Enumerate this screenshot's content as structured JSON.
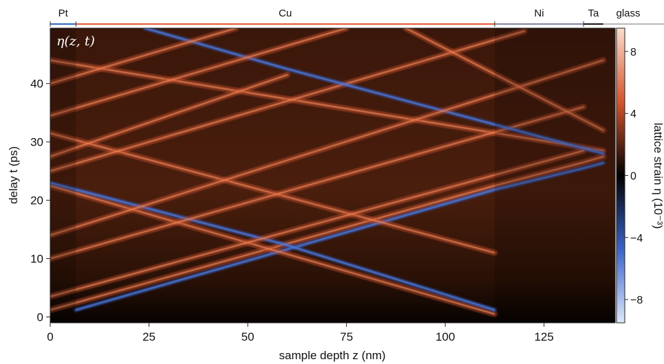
{
  "chart_data": {
    "type": "heatmap",
    "title": "",
    "panel_label": "η(z, t)",
    "xlabel": "sample depth z (nm)",
    "ylabel": "delay t (ps)",
    "xlim": [
      0,
      143
    ],
    "ylim": [
      -1,
      49.5
    ],
    "x_ticks": [
      0,
      25,
      50,
      75,
      100,
      125
    ],
    "x_tick_labels": [
      "0",
      "25",
      "50",
      "75",
      "100",
      "125"
    ],
    "y_ticks": [
      0,
      10,
      20,
      30,
      40
    ],
    "y_tick_labels": [
      "0",
      "10",
      "20",
      "30",
      "40"
    ],
    "layers": [
      {
        "name": "Pt",
        "z_start": 0,
        "z_end": 6.5,
        "color": "#3b6fc4"
      },
      {
        "name": "Cu",
        "z_start": 6.5,
        "z_end": 112.5,
        "color": "#e8603a"
      },
      {
        "name": "Ni",
        "z_start": 112.5,
        "z_end": 135,
        "color": "#8a8aa6"
      },
      {
        "name": "Ta",
        "z_start": 135,
        "z_end": 140,
        "color": "#222222"
      },
      {
        "name": "glass",
        "z_start": 140,
        "z_end": 143,
        "color": "#bbbbbb"
      }
    ],
    "colorbar": {
      "label": "lattice strain η (10⁻³)",
      "range": [
        -9.5,
        9.5
      ],
      "ticks": [
        8,
        4,
        0,
        -4,
        -8
      ],
      "tick_labels": [
        "8",
        "4",
        "0",
        "−4",
        "−8"
      ],
      "colormap": [
        "#dce8fb",
        "#3b64c8",
        "#000000",
        "#d4552e",
        "#fbdccc"
      ]
    },
    "strain_fronts": [
      {
        "kind": "tensile",
        "points": [
          [
            0,
            1.2
          ],
          [
            112.5,
            22.5
          ],
          [
            135,
            26.5
          ],
          [
            140,
            27.5
          ]
        ]
      },
      {
        "kind": "compressive",
        "points": [
          [
            6.5,
            1.2
          ],
          [
            112.5,
            21.8
          ],
          [
            135,
            25.5
          ],
          [
            140,
            26.4
          ]
        ]
      },
      {
        "kind": "tensile",
        "points": [
          [
            0,
            22.5
          ],
          [
            112.5,
            0.5
          ]
        ]
      },
      {
        "kind": "compressive",
        "points": [
          [
            0,
            23.0
          ],
          [
            59,
            12.5
          ],
          [
            112.5,
            1.2
          ]
        ]
      },
      {
        "kind": "tensile",
        "points": [
          [
            0,
            31.5
          ],
          [
            112.5,
            11
          ]
        ]
      },
      {
        "kind": "tensile",
        "points": [
          [
            0,
            44
          ],
          [
            140,
            28.5
          ]
        ]
      },
      {
        "kind": "tensile",
        "points": [
          [
            0,
            3.5
          ],
          [
            135,
            28.5
          ]
        ]
      },
      {
        "kind": "tensile",
        "points": [
          [
            0,
            10
          ],
          [
            135,
            36
          ]
        ]
      },
      {
        "kind": "tensile",
        "points": [
          [
            0,
            25
          ],
          [
            120,
            49
          ]
        ]
      },
      {
        "kind": "compressive",
        "points": [
          [
            24,
            49.5
          ],
          [
            60,
            42.5
          ],
          [
            140,
            28
          ]
        ]
      },
      {
        "kind": "tensile",
        "points": [
          [
            0,
            40
          ],
          [
            47,
            49.5
          ]
        ]
      },
      {
        "kind": "tensile",
        "points": [
          [
            0,
            34.5
          ],
          [
            75,
            49.5
          ]
        ]
      },
      {
        "kind": "tensile",
        "points": [
          [
            0,
            14
          ],
          [
            140,
            44
          ]
        ]
      },
      {
        "kind": "tensile",
        "points": [
          [
            0,
            27.5
          ],
          [
            60,
            41.5
          ]
        ]
      },
      {
        "kind": "tensile",
        "points": [
          [
            90,
            49.5
          ],
          [
            140,
            32
          ]
        ]
      }
    ]
  }
}
